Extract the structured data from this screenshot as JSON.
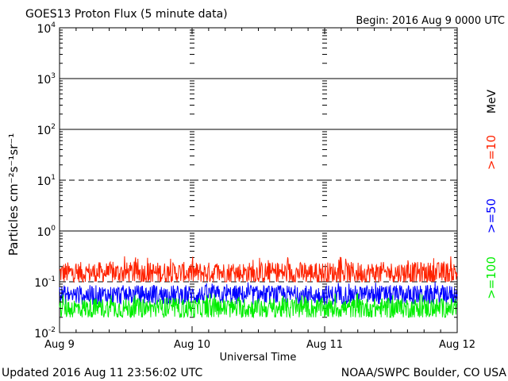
{
  "chart_data": {
    "type": "line",
    "title": "GOES13 Proton Flux (5 minute data)",
    "begin_label": "Begin: 2016 Aug 9 0000 UTC",
    "xlabel": "Universal Time",
    "ylabel": "Particles cm⁻²s⁻¹sr⁻¹",
    "updated_label": "Updated 2016 Aug 11 23:56:02 UTC",
    "credit_label": "NOAA/SWPC Boulder, CO USA",
    "unit_label": "MeV",
    "x_ticks": [
      "Aug 9",
      "Aug 10",
      "Aug 11",
      "Aug 12"
    ],
    "y_scale": "log",
    "ylim_exponent": [
      -2,
      4
    ],
    "y_tick_labels": [
      {
        "exp": 4,
        "base": "10",
        "sup": "4"
      },
      {
        "exp": 3,
        "base": "10",
        "sup": "3"
      },
      {
        "exp": 2,
        "base": "10",
        "sup": "2"
      },
      {
        "exp": 1,
        "base": "10",
        "sup": "1"
      },
      {
        "exp": 0,
        "base": "10",
        "sup": "0"
      },
      {
        "exp": -1,
        "base": "10",
        "sup": "-1"
      },
      {
        "exp": -2,
        "base": "10",
        "sup": "-2"
      }
    ],
    "solid_grid_exponents": [
      3,
      2,
      0
    ],
    "dashed_grid_exponents": [
      1,
      -1
    ],
    "series": [
      {
        "name": ">=10",
        "color": "#ff2200",
        "typical": 0.15,
        "low": 0.1,
        "high": 0.32
      },
      {
        "name": ">=50",
        "color": "#0000ff",
        "typical": 0.055,
        "low": 0.035,
        "high": 0.1
      },
      {
        "name": ">=100",
        "color": "#00ee00",
        "typical": 0.03,
        "low": 0.02,
        "high": 0.06
      }
    ]
  }
}
